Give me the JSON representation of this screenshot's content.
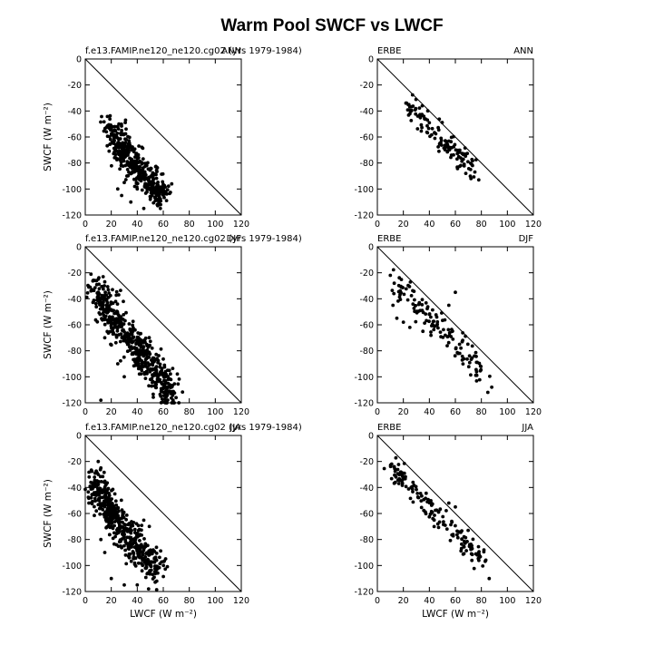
{
  "figure_title": "Warm Pool SWCF vs LWCF",
  "chart_data": [
    {
      "type": "scatter",
      "panel_left": "f.e13.FAMIP.ne120_ne120.cg02 (yrs 1979-1984)",
      "panel_right": "ANN",
      "xlabel": "",
      "ylabel": "SWCF (W m⁻²)",
      "xlim": [
        0,
        120
      ],
      "ylim": [
        -120,
        0
      ],
      "xticks": [
        "0",
        "20",
        "40",
        "60",
        "80",
        "100",
        "120"
      ],
      "yticks": [
        "0",
        "-20",
        "-40",
        "-60",
        "-80",
        "-100",
        "-120"
      ],
      "reference_line": "y = -x",
      "cloud": {
        "n": 420,
        "seed": 11,
        "points": [
          [
            16,
            -50
          ],
          [
            20,
            -55
          ],
          [
            25,
            -62
          ],
          [
            28,
            -68
          ],
          [
            32,
            -74
          ],
          [
            36,
            -80
          ],
          [
            40,
            -84
          ],
          [
            44,
            -88
          ],
          [
            48,
            -92
          ],
          [
            52,
            -96
          ],
          [
            56,
            -100
          ],
          [
            60,
            -104
          ]
        ],
        "spread": [
          4,
          6
        ]
      },
      "points": [
        [
          22,
          -58
        ],
        [
          25,
          -52
        ],
        [
          28,
          -55
        ],
        [
          31,
          -47
        ],
        [
          30,
          -95
        ],
        [
          28,
          -105
        ],
        [
          35,
          -110
        ],
        [
          40,
          -100
        ],
        [
          50,
          -108
        ],
        [
          58,
          -112
        ],
        [
          60,
          -102
        ],
        [
          45,
          -115
        ],
        [
          38,
          -98
        ],
        [
          25,
          -100
        ],
        [
          32,
          -90
        ]
      ]
    },
    {
      "type": "scatter",
      "panel_left": "ERBE",
      "panel_right": "ANN",
      "xlabel": "",
      "ylabel": "",
      "xlim": [
        0,
        120
      ],
      "ylim": [
        -120,
        0
      ],
      "xticks": [
        "0",
        "20",
        "40",
        "60",
        "80",
        "100",
        "120"
      ],
      "yticks": [
        "0",
        "-20",
        "-40",
        "-60",
        "-80",
        "-100",
        "-120"
      ],
      "reference_line": "y = -x",
      "cloud": {
        "n": 120,
        "seed": 23,
        "points": [
          [
            23,
            -35
          ],
          [
            30,
            -42
          ],
          [
            38,
            -50
          ],
          [
            45,
            -58
          ],
          [
            52,
            -65
          ],
          [
            58,
            -70
          ],
          [
            64,
            -76
          ],
          [
            70,
            -82
          ],
          [
            76,
            -90
          ]
        ],
        "spread": [
          3,
          4
        ]
      },
      "points": [
        [
          22,
          -34
        ],
        [
          25,
          -37
        ],
        [
          72,
          -92
        ],
        [
          78,
          -93
        ],
        [
          68,
          -88
        ]
      ]
    },
    {
      "type": "scatter",
      "panel_left": "f.e13.FAMIP.ne120_ne120.cg02 (yrs 1979-1984)",
      "panel_right": "DJF",
      "xlabel": "",
      "ylabel": "SWCF (W m⁻²)",
      "xlim": [
        0,
        120
      ],
      "ylim": [
        -120,
        0
      ],
      "xticks": [
        "0",
        "20",
        "40",
        "60",
        "80",
        "100",
        "120"
      ],
      "yticks": [
        "0",
        "-20",
        "-40",
        "-60",
        "-80",
        "-100",
        "-120"
      ],
      "reference_line": "y = -x",
      "cloud": {
        "n": 520,
        "seed": 37,
        "points": [
          [
            6,
            -32
          ],
          [
            10,
            -38
          ],
          [
            15,
            -45
          ],
          [
            20,
            -52
          ],
          [
            26,
            -60
          ],
          [
            32,
            -68
          ],
          [
            38,
            -76
          ],
          [
            44,
            -84
          ],
          [
            50,
            -92
          ],
          [
            56,
            -100
          ],
          [
            62,
            -108
          ],
          [
            68,
            -116
          ]
        ],
        "spread": [
          4,
          7
        ]
      },
      "points": [
        [
          10,
          -25
        ],
        [
          15,
          -27
        ],
        [
          12,
          -118
        ],
        [
          72,
          -120
        ],
        [
          20,
          -60
        ],
        [
          15,
          -70
        ],
        [
          25,
          -90
        ],
        [
          30,
          -100
        ]
      ]
    },
    {
      "type": "scatter",
      "panel_left": "ERBE",
      "panel_right": "DJF",
      "xlabel": "",
      "ylabel": "",
      "xlim": [
        0,
        120
      ],
      "ylim": [
        -120,
        0
      ],
      "xticks": [
        "0",
        "20",
        "40",
        "60",
        "80",
        "100",
        "120"
      ],
      "yticks": [
        "0",
        "-20",
        "-40",
        "-60",
        "-80",
        "-100",
        "-120"
      ],
      "reference_line": "y = -x",
      "cloud": {
        "n": 130,
        "seed": 41,
        "points": [
          [
            12,
            -25
          ],
          [
            20,
            -35
          ],
          [
            28,
            -45
          ],
          [
            36,
            -52
          ],
          [
            44,
            -58
          ],
          [
            52,
            -66
          ],
          [
            60,
            -74
          ],
          [
            68,
            -82
          ],
          [
            76,
            -92
          ],
          [
            82,
            -102
          ]
        ],
        "spread": [
          3,
          6
        ]
      },
      "points": [
        [
          10,
          -22
        ],
        [
          12,
          -45
        ],
        [
          15,
          -55
        ],
        [
          20,
          -58
        ],
        [
          25,
          -62
        ],
        [
          35,
          -65
        ],
        [
          40,
          -52
        ],
        [
          55,
          -45
        ],
        [
          60,
          -35
        ],
        [
          85,
          -112
        ],
        [
          88,
          -108
        ]
      ]
    },
    {
      "type": "scatter",
      "panel_left": "f.e13.FAMIP.ne120_ne120.cg02 (yrs 1979-1984)",
      "panel_right": "JJA",
      "xlabel": "LWCF (W m⁻²)",
      "ylabel": "SWCF (W m⁻²)",
      "xlim": [
        0,
        120
      ],
      "ylim": [
        -120,
        0
      ],
      "xticks": [
        "0",
        "20",
        "40",
        "60",
        "80",
        "100",
        "120"
      ],
      "yticks": [
        "0",
        "-20",
        "-40",
        "-60",
        "-80",
        "-100",
        "-120"
      ],
      "reference_line": "y = -x",
      "cloud": {
        "n": 500,
        "seed": 53,
        "points": [
          [
            6,
            -35
          ],
          [
            10,
            -42
          ],
          [
            15,
            -52
          ],
          [
            20,
            -60
          ],
          [
            26,
            -68
          ],
          [
            32,
            -76
          ],
          [
            38,
            -84
          ],
          [
            44,
            -92
          ],
          [
            50,
            -98
          ],
          [
            56,
            -106
          ]
        ],
        "spread": [
          4,
          7
        ]
      },
      "points": [
        [
          10,
          -20
        ],
        [
          12,
          -25
        ],
        [
          10,
          -30
        ],
        [
          20,
          -110
        ],
        [
          30,
          -115
        ],
        [
          40,
          -115
        ],
        [
          55,
          -112
        ],
        [
          15,
          -90
        ],
        [
          12,
          -80
        ]
      ]
    },
    {
      "type": "scatter",
      "panel_left": "ERBE",
      "panel_right": "JJA",
      "xlabel": "LWCF (W m⁻²)",
      "ylabel": "",
      "xlim": [
        0,
        120
      ],
      "ylim": [
        -120,
        0
      ],
      "xticks": [
        "0",
        "20",
        "40",
        "60",
        "80",
        "100",
        "120"
      ],
      "yticks": [
        "0",
        "-20",
        "-40",
        "-60",
        "-80",
        "-100",
        "-120"
      ],
      "reference_line": "y = -x",
      "cloud": {
        "n": 150,
        "seed": 67,
        "points": [
          [
            12,
            -24
          ],
          [
            18,
            -32
          ],
          [
            26,
            -40
          ],
          [
            34,
            -50
          ],
          [
            42,
            -58
          ],
          [
            50,
            -66
          ],
          [
            58,
            -74
          ],
          [
            66,
            -82
          ],
          [
            74,
            -90
          ],
          [
            80,
            -98
          ]
        ],
        "spread": [
          3,
          4
        ]
      },
      "points": [
        [
          11,
          -22
        ],
        [
          13,
          -24
        ],
        [
          86,
          -110
        ],
        [
          60,
          -55
        ],
        [
          55,
          -52
        ]
      ]
    }
  ]
}
